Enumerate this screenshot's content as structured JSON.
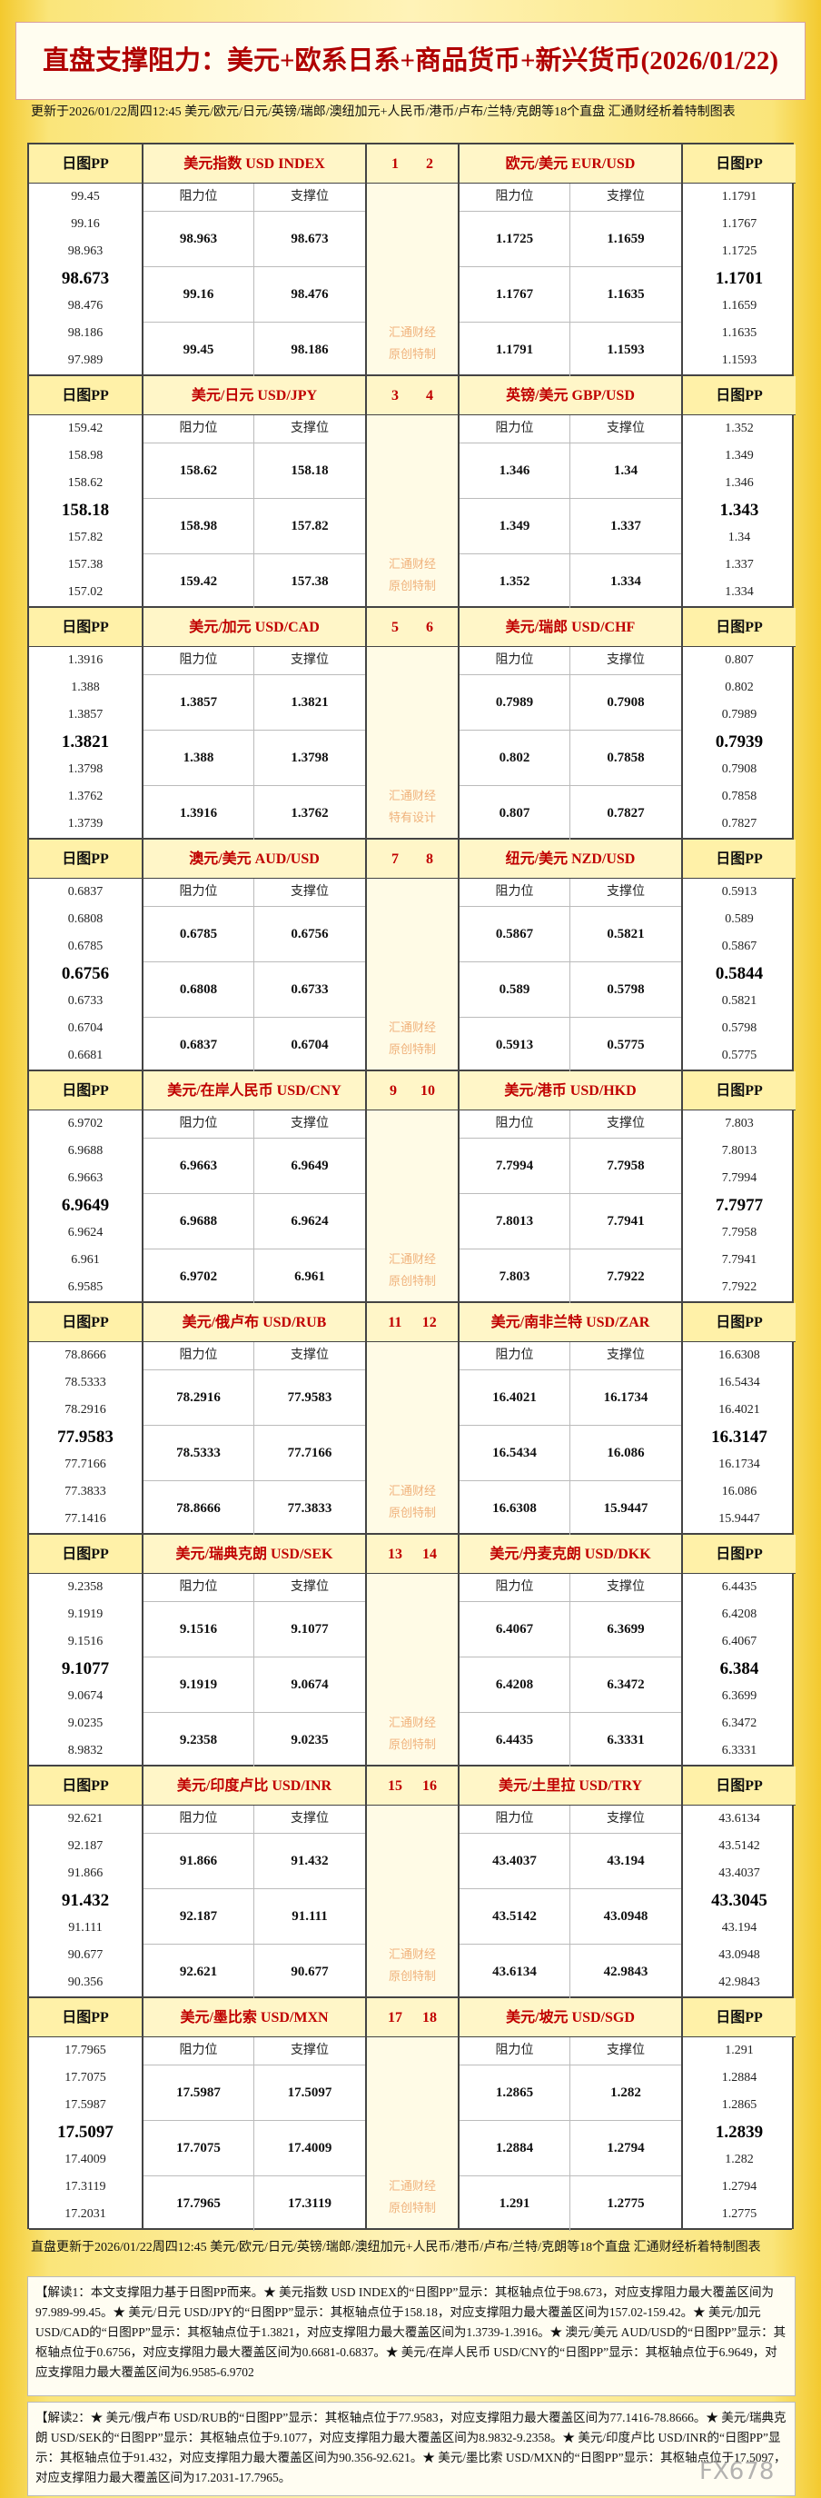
{
  "header": {
    "title": "直盘支撑阻力：美元+欧系日系+商品货币+新兴货币(2026/01/22)",
    "update": "更新于2026/01/22周四12:45 美元/欧元/日元/英镑/瑞郎/澳纽加元+人民币/港币/卢布/兰特/克朗等18个直盘 汇通财经析着特制图表"
  },
  "labels": {
    "pp": "日图PP",
    "res": "阻力位",
    "sup": "支撑位"
  },
  "blocks": [
    {
      "nums": [
        1,
        2
      ],
      "mark": [
        "汇通财经",
        "原创特制"
      ],
      "left": {
        "name": "美元指数 USD INDEX",
        "pp": [
          99.45,
          99.16,
          98.963,
          98.673,
          98.476,
          98.186,
          97.989
        ],
        "rows": [
          [
            98.963,
            98.673
          ],
          [
            99.16,
            98.476
          ],
          [
            99.45,
            98.186
          ]
        ]
      },
      "right": {
        "name": "欧元/美元 EUR/USD",
        "pp": [
          1.1791,
          1.1767,
          1.1725,
          1.1701,
          1.1659,
          1.1635,
          1.1593
        ],
        "rows": [
          [
            1.1725,
            1.1659
          ],
          [
            1.1767,
            1.1635
          ],
          [
            1.1791,
            1.1593
          ]
        ]
      }
    },
    {
      "nums": [
        3,
        4
      ],
      "mark": [
        "汇通财经",
        "原创特制"
      ],
      "left": {
        "name": "美元/日元 USD/JPY",
        "pp": [
          159.42,
          158.98,
          158.62,
          158.18,
          157.82,
          157.38,
          157.02
        ],
        "rows": [
          [
            158.62,
            158.18
          ],
          [
            158.98,
            157.82
          ],
          [
            159.42,
            157.38
          ]
        ]
      },
      "right": {
        "name": "英镑/美元 GBP/USD",
        "pp": [
          1.352,
          1.349,
          1.346,
          1.343,
          1.34,
          1.337,
          1.334
        ],
        "rows": [
          [
            1.346,
            1.34
          ],
          [
            1.349,
            1.337
          ],
          [
            1.352,
            1.334
          ]
        ]
      }
    },
    {
      "nums": [
        5,
        6
      ],
      "mark": [
        "汇通财经",
        "特有设计"
      ],
      "left": {
        "name": "美元/加元 USD/CAD",
        "pp": [
          1.3916,
          1.388,
          1.3857,
          1.3821,
          1.3798,
          1.3762,
          1.3739
        ],
        "rows": [
          [
            1.3857,
            1.3821
          ],
          [
            1.388,
            1.3798
          ],
          [
            1.3916,
            1.3762
          ]
        ]
      },
      "right": {
        "name": "美元/瑞郎 USD/CHF",
        "pp": [
          0.807,
          0.802,
          0.7989,
          0.7939,
          0.7908,
          0.7858,
          0.7827
        ],
        "rows": [
          [
            0.7989,
            0.7908
          ],
          [
            0.802,
            0.7858
          ],
          [
            0.807,
            0.7827
          ]
        ]
      }
    },
    {
      "nums": [
        7,
        8
      ],
      "mark": [
        "汇通财经",
        "原创特制"
      ],
      "left": {
        "name": "澳元/美元 AUD/USD",
        "pp": [
          0.6837,
          0.6808,
          0.6785,
          0.6756,
          0.6733,
          0.6704,
          0.6681
        ],
        "rows": [
          [
            0.6785,
            0.6756
          ],
          [
            0.6808,
            0.6733
          ],
          [
            0.6837,
            0.6704
          ]
        ]
      },
      "right": {
        "name": "纽元/美元 NZD/USD",
        "pp": [
          0.5913,
          0.589,
          0.5867,
          0.5844,
          0.5821,
          0.5798,
          0.5775
        ],
        "rows": [
          [
            0.5867,
            0.5821
          ],
          [
            0.589,
            0.5798
          ],
          [
            0.5913,
            0.5775
          ]
        ]
      }
    },
    {
      "nums": [
        9,
        10
      ],
      "mark": [
        "汇通财经",
        "原创特制"
      ],
      "left": {
        "name": "美元/在岸人民币 USD/CNY",
        "pp": [
          6.9702,
          6.9688,
          6.9663,
          6.9649,
          6.9624,
          6.961,
          6.9585
        ],
        "rows": [
          [
            6.9663,
            6.9649
          ],
          [
            6.9688,
            6.9624
          ],
          [
            6.9702,
            6.961
          ]
        ]
      },
      "right": {
        "name": "美元/港币 USD/HKD",
        "pp": [
          7.803,
          7.8013,
          7.7994,
          7.7977,
          7.7958,
          7.7941,
          7.7922
        ],
        "rows": [
          [
            7.7994,
            7.7958
          ],
          [
            7.8013,
            7.7941
          ],
          [
            7.803,
            7.7922
          ]
        ]
      }
    },
    {
      "nums": [
        11,
        12
      ],
      "mark": [
        "汇通财经",
        "原创特制"
      ],
      "left": {
        "name": "美元/俄卢布 USD/RUB",
        "pp": [
          78.8666,
          78.5333,
          78.2916,
          77.9583,
          77.7166,
          77.3833,
          77.1416
        ],
        "rows": [
          [
            78.2916,
            77.9583
          ],
          [
            78.5333,
            77.7166
          ],
          [
            78.8666,
            77.3833
          ]
        ]
      },
      "right": {
        "name": "美元/南非兰特 USD/ZAR",
        "pp": [
          16.6308,
          16.5434,
          16.4021,
          16.3147,
          16.1734,
          16.086,
          15.9447
        ],
        "rows": [
          [
            16.4021,
            16.1734
          ],
          [
            16.5434,
            16.086
          ],
          [
            16.6308,
            15.9447
          ]
        ]
      }
    },
    {
      "nums": [
        13,
        14
      ],
      "mark": [
        "汇通财经",
        "原创特制"
      ],
      "left": {
        "name": "美元/瑞典克朗 USD/SEK",
        "pp": [
          9.2358,
          9.1919,
          9.1516,
          9.1077,
          9.0674,
          9.0235,
          8.9832
        ],
        "rows": [
          [
            9.1516,
            9.1077
          ],
          [
            9.1919,
            9.0674
          ],
          [
            9.2358,
            9.0235
          ]
        ]
      },
      "right": {
        "name": "美元/丹麦克朗 USD/DKK",
        "pp": [
          6.4435,
          6.4208,
          6.4067,
          6.384,
          6.3699,
          6.3472,
          6.3331
        ],
        "rows": [
          [
            6.4067,
            6.3699
          ],
          [
            6.4208,
            6.3472
          ],
          [
            6.4435,
            6.3331
          ]
        ]
      }
    },
    {
      "nums": [
        15,
        16
      ],
      "mark": [
        "汇通财经",
        "原创特制"
      ],
      "left": {
        "name": "美元/印度卢比 USD/INR",
        "pp": [
          92.621,
          92.187,
          91.866,
          91.432,
          91.111,
          90.677,
          90.356
        ],
        "rows": [
          [
            91.866,
            91.432
          ],
          [
            92.187,
            91.111
          ],
          [
            92.621,
            90.677
          ]
        ]
      },
      "right": {
        "name": "美元/土里拉 USD/TRY",
        "pp": [
          43.6134,
          43.5142,
          43.4037,
          43.3045,
          43.194,
          43.0948,
          42.9843
        ],
        "rows": [
          [
            43.4037,
            43.194
          ],
          [
            43.5142,
            43.0948
          ],
          [
            43.6134,
            42.9843
          ]
        ]
      }
    },
    {
      "nums": [
        17,
        18
      ],
      "mark": [
        "汇通财经",
        "原创特制"
      ],
      "left": {
        "name": "美元/墨比索 USD/MXN",
        "pp": [
          17.7965,
          17.7075,
          17.5987,
          17.5097,
          17.4009,
          17.3119,
          17.2031
        ],
        "rows": [
          [
            17.5987,
            17.5097
          ],
          [
            17.7075,
            17.4009
          ],
          [
            17.7965,
            17.3119
          ]
        ]
      },
      "right": {
        "name": "美元/坡元 USD/SGD",
        "pp": [
          1.291,
          1.2884,
          1.2865,
          1.2839,
          1.282,
          1.2794,
          1.2775
        ],
        "rows": [
          [
            1.2865,
            1.282
          ],
          [
            1.2884,
            1.2794
          ],
          [
            1.291,
            1.2775
          ]
        ]
      }
    }
  ],
  "footer": {
    "update": "直盘更新于2026/01/22周四12:45 美元/欧元/日元/英镑/瑞郎/澳纽加元+人民币/港币/卢布/兰特/克朗等18个直盘 汇通财经析着特制图表",
    "notes": [
      "【解读1：本文支撑阻力基于日图PP而来。★ 美元指数 USD INDEX的“日图PP”显示：其枢轴点位于98.673，对应支撑阻力最大覆盖区间为97.989-99.45。★ 美元/日元 USD/JPY的“日图PP”显示：其枢轴点位于158.18，对应支撑阻力最大覆盖区间为157.02-159.42。★ 美元/加元 USD/CAD的“日图PP”显示：其枢轴点位于1.3821，对应支撑阻力最大覆盖区间为1.3739-1.3916。★ 澳元/美元 AUD/USD的“日图PP”显示：其枢轴点位于0.6756，对应支撑阻力最大覆盖区间为0.6681-0.6837。★ 美元/在岸人民币 USD/CNY的“日图PP”显示：其枢轴点位于6.9649，对应支撑阻力最大覆盖区间为6.9585-6.9702",
      "【解读2：★ 美元/俄卢布 USD/RUB的“日图PP”显示：其枢轴点位于77.9583，对应支撑阻力最大覆盖区间为77.1416-78.8666。★ 美元/瑞典克朗 USD/SEK的“日图PP”显示：其枢轴点位于9.1077，对应支撑阻力最大覆盖区间为8.9832-9.2358。★ 美元/印度卢比 USD/INR的“日图PP”显示：其枢轴点位于91.432，对应支撑阻力最大覆盖区间为90.356-92.621。★ 美元/墨比索 USD/MXN的“日图PP”显示：其枢轴点位于17.5097，对应支撑阻力最大覆盖区间为17.2031-17.7965。"
    ],
    "logo": "FX678"
  }
}
